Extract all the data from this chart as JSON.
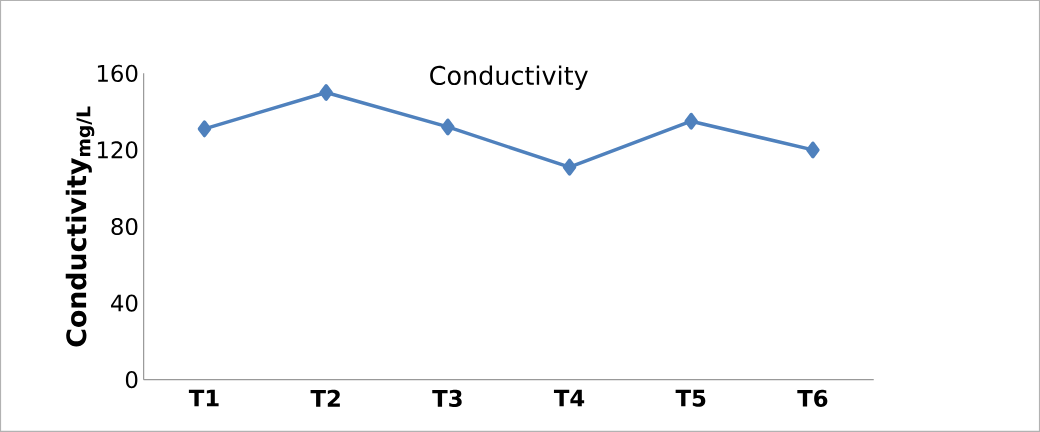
{
  "chart_data": {
    "type": "line",
    "title": "Conductivity",
    "ylabel": "Conductivity$_{mg/L}$",
    "categories": [
      "T1",
      "T2",
      "T3",
      "T4",
      "T5",
      "T6"
    ],
    "series": [
      {
        "color": "#4f81bd",
        "values": [
          131,
          150,
          132,
          111,
          135,
          120
        ]
      }
    ],
    "ylim": [
      0,
      160
    ],
    "yticks": [
      0,
      40,
      80,
      120,
      160
    ],
    "grid": false,
    "marker": "diamond",
    "line_style": "solid"
  }
}
